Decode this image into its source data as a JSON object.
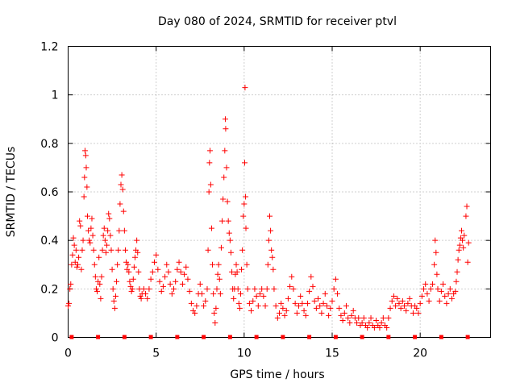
{
  "chart_data": {
    "type": "scatter",
    "title": "Day 080 of 2024, SRMTID for receiver ptvl",
    "xlabel": "GPS time / hours",
    "ylabel": "SRMTID / TECUs",
    "xlim": [
      0,
      24
    ],
    "ylim": [
      0,
      1.2
    ],
    "x_ticks": [
      0,
      5,
      10,
      15,
      20
    ],
    "x_tick_labels": [
      "0",
      "5",
      "10",
      "15",
      "20"
    ],
    "y_ticks": [
      0,
      0.2,
      0.4,
      0.6,
      0.8,
      1.0,
      1.2
    ],
    "y_tick_labels": [
      "0",
      "0.2",
      "0.4",
      "0.6",
      "0.8",
      "1",
      "1.2"
    ],
    "grid": true,
    "marker": "plus",
    "color": "#ff0000",
    "series": [
      {
        "name": "SRMTID",
        "points": [
          [
            0.0,
            0.13
          ],
          [
            0.05,
            0.14
          ],
          [
            0.1,
            0.2
          ],
          [
            0.15,
            0.22
          ],
          [
            0.2,
            0.3
          ],
          [
            0.25,
            0.34
          ],
          [
            0.3,
            0.41
          ],
          [
            0.35,
            0.38
          ],
          [
            0.4,
            0.31
          ],
          [
            0.45,
            0.36
          ],
          [
            0.5,
            0.29
          ],
          [
            0.55,
            0.3
          ],
          [
            0.6,
            0.33
          ],
          [
            0.65,
            0.48
          ],
          [
            0.7,
            0.46
          ],
          [
            0.75,
            0.28
          ],
          [
            0.8,
            0.36
          ],
          [
            0.85,
            0.4
          ],
          [
            0.9,
            0.58
          ],
          [
            0.93,
            0.66
          ],
          [
            0.96,
            0.77
          ],
          [
            1.0,
            0.75
          ],
          [
            1.03,
            0.7
          ],
          [
            1.07,
            0.62
          ],
          [
            1.1,
            0.5
          ],
          [
            1.15,
            0.44
          ],
          [
            1.2,
            0.4
          ],
          [
            1.25,
            0.39
          ],
          [
            1.3,
            0.45
          ],
          [
            1.35,
            0.49
          ],
          [
            1.4,
            0.42
          ],
          [
            1.45,
            0.36
          ],
          [
            1.5,
            0.3
          ],
          [
            1.55,
            0.25
          ],
          [
            1.6,
            0.2
          ],
          [
            1.65,
            0.19
          ],
          [
            1.7,
            0.23
          ],
          [
            1.75,
            0.33
          ],
          [
            1.8,
            0.22
          ],
          [
            1.85,
            0.16
          ],
          [
            1.9,
            0.25
          ],
          [
            1.95,
            0.36
          ],
          [
            2.0,
            0.42
          ],
          [
            2.05,
            0.45
          ],
          [
            2.1,
            0.4
          ],
          [
            2.15,
            0.35
          ],
          [
            2.2,
            0.38
          ],
          [
            2.25,
            0.44
          ],
          [
            2.3,
            0.51
          ],
          [
            2.35,
            0.49
          ],
          [
            2.4,
            0.42
          ],
          [
            2.45,
            0.36
          ],
          [
            2.5,
            0.28
          ],
          [
            2.55,
            0.2
          ],
          [
            2.6,
            0.15
          ],
          [
            2.65,
            0.12
          ],
          [
            2.7,
            0.17
          ],
          [
            2.75,
            0.23
          ],
          [
            2.8,
            0.3
          ],
          [
            2.85,
            0.36
          ],
          [
            2.9,
            0.44
          ],
          [
            2.95,
            0.55
          ],
          [
            3.0,
            0.63
          ],
          [
            3.05,
            0.67
          ],
          [
            3.1,
            0.61
          ],
          [
            3.15,
            0.52
          ],
          [
            3.2,
            0.44
          ],
          [
            3.25,
            0.36
          ],
          [
            3.3,
            0.31
          ],
          [
            3.35,
            0.28
          ],
          [
            3.4,
            0.3
          ],
          [
            3.45,
            0.27
          ],
          [
            3.5,
            0.23
          ],
          [
            3.55,
            0.21
          ],
          [
            3.6,
            0.19
          ],
          [
            3.65,
            0.2
          ],
          [
            3.7,
            0.24
          ],
          [
            3.75,
            0.29
          ],
          [
            3.8,
            0.33
          ],
          [
            3.85,
            0.36
          ],
          [
            3.9,
            0.4
          ],
          [
            3.95,
            0.35
          ],
          [
            4.0,
            0.27
          ],
          [
            4.05,
            0.2
          ],
          [
            4.1,
            0.17
          ],
          [
            4.15,
            0.16
          ],
          [
            4.2,
            0.18
          ],
          [
            4.3,
            0.2
          ],
          [
            4.4,
            0.18
          ],
          [
            4.5,
            0.16
          ],
          [
            4.6,
            0.2
          ],
          [
            4.7,
            0.24
          ],
          [
            4.8,
            0.27
          ],
          [
            4.9,
            0.31
          ],
          [
            5.0,
            0.34
          ],
          [
            5.1,
            0.28
          ],
          [
            5.2,
            0.23
          ],
          [
            5.3,
            0.19
          ],
          [
            5.4,
            0.21
          ],
          [
            5.5,
            0.25
          ],
          [
            5.6,
            0.3
          ],
          [
            5.7,
            0.27
          ],
          [
            5.8,
            0.22
          ],
          [
            5.9,
            0.18
          ],
          [
            6.0,
            0.2
          ],
          [
            6.1,
            0.23
          ],
          [
            6.2,
            0.28
          ],
          [
            6.3,
            0.31
          ],
          [
            6.4,
            0.27
          ],
          [
            6.5,
            0.22
          ],
          [
            6.6,
            0.26
          ],
          [
            6.7,
            0.29
          ],
          [
            6.8,
            0.24
          ],
          [
            6.9,
            0.19
          ],
          [
            7.0,
            0.14
          ],
          [
            7.1,
            0.11
          ],
          [
            7.2,
            0.1
          ],
          [
            7.3,
            0.13
          ],
          [
            7.4,
            0.18
          ],
          [
            7.5,
            0.22
          ],
          [
            7.6,
            0.18
          ],
          [
            7.7,
            0.13
          ],
          [
            7.8,
            0.15
          ],
          [
            7.9,
            0.2
          ],
          [
            7.95,
            0.36
          ],
          [
            8.0,
            0.6
          ],
          [
            8.03,
            0.72
          ],
          [
            8.06,
            0.77
          ],
          [
            8.1,
            0.63
          ],
          [
            8.15,
            0.45
          ],
          [
            8.2,
            0.3
          ],
          [
            8.25,
            0.18
          ],
          [
            8.3,
            0.1
          ],
          [
            8.35,
            0.06
          ],
          [
            8.4,
            0.12
          ],
          [
            8.45,
            0.2
          ],
          [
            8.5,
            0.26
          ],
          [
            8.55,
            0.3
          ],
          [
            8.6,
            0.24
          ],
          [
            8.65,
            0.18
          ],
          [
            8.7,
            0.37
          ],
          [
            8.75,
            0.48
          ],
          [
            8.8,
            0.57
          ],
          [
            8.85,
            0.66
          ],
          [
            8.9,
            0.77
          ],
          [
            8.93,
            0.9
          ],
          [
            8.95,
            0.86
          ],
          [
            9.0,
            0.7
          ],
          [
            9.05,
            0.56
          ],
          [
            9.1,
            0.48
          ],
          [
            9.15,
            0.43
          ],
          [
            9.2,
            0.4
          ],
          [
            9.25,
            0.35
          ],
          [
            9.3,
            0.27
          ],
          [
            9.35,
            0.2
          ],
          [
            9.4,
            0.16
          ],
          [
            9.45,
            0.2
          ],
          [
            9.5,
            0.26
          ],
          [
            9.55,
            0.3
          ],
          [
            9.6,
            0.27
          ],
          [
            9.65,
            0.2
          ],
          [
            9.7,
            0.14
          ],
          [
            9.75,
            0.12
          ],
          [
            9.8,
            0.18
          ],
          [
            9.85,
            0.28
          ],
          [
            9.9,
            0.36
          ],
          [
            9.95,
            0.5
          ],
          [
            10.0,
            0.55
          ],
          [
            10.03,
            0.72
          ],
          [
            10.05,
            1.03
          ],
          [
            10.08,
            0.58
          ],
          [
            10.1,
            0.45
          ],
          [
            10.15,
            0.3
          ],
          [
            10.2,
            0.2
          ],
          [
            10.3,
            0.14
          ],
          [
            10.4,
            0.11
          ],
          [
            10.5,
            0.15
          ],
          [
            10.6,
            0.2
          ],
          [
            10.7,
            0.17
          ],
          [
            10.8,
            0.13
          ],
          [
            10.9,
            0.18
          ],
          [
            11.0,
            0.2
          ],
          [
            11.1,
            0.17
          ],
          [
            11.2,
            0.13
          ],
          [
            11.3,
            0.2
          ],
          [
            11.35,
            0.3
          ],
          [
            11.4,
            0.4
          ],
          [
            11.45,
            0.5
          ],
          [
            11.5,
            0.44
          ],
          [
            11.55,
            0.36
          ],
          [
            11.6,
            0.33
          ],
          [
            11.65,
            0.28
          ],
          [
            11.7,
            0.2
          ],
          [
            11.8,
            0.13
          ],
          [
            11.9,
            0.08
          ],
          [
            12.0,
            0.1
          ],
          [
            12.1,
            0.14
          ],
          [
            12.2,
            0.12
          ],
          [
            12.3,
            0.09
          ],
          [
            12.4,
            0.11
          ],
          [
            12.5,
            0.16
          ],
          [
            12.6,
            0.21
          ],
          [
            12.7,
            0.25
          ],
          [
            12.8,
            0.2
          ],
          [
            12.9,
            0.14
          ],
          [
            13.0,
            0.1
          ],
          [
            13.1,
            0.13
          ],
          [
            13.2,
            0.17
          ],
          [
            13.3,
            0.14
          ],
          [
            13.4,
            0.11
          ],
          [
            13.5,
            0.09
          ],
          [
            13.6,
            0.14
          ],
          [
            13.7,
            0.19
          ],
          [
            13.8,
            0.25
          ],
          [
            13.9,
            0.21
          ],
          [
            14.0,
            0.15
          ],
          [
            14.1,
            0.12
          ],
          [
            14.2,
            0.16
          ],
          [
            14.3,
            0.13
          ],
          [
            14.4,
            0.1
          ],
          [
            14.5,
            0.14
          ],
          [
            14.6,
            0.18
          ],
          [
            14.7,
            0.13
          ],
          [
            14.8,
            0.09
          ],
          [
            14.9,
            0.12
          ],
          [
            15.0,
            0.15
          ],
          [
            15.1,
            0.2
          ],
          [
            15.2,
            0.24
          ],
          [
            15.3,
            0.18
          ],
          [
            15.4,
            0.12
          ],
          [
            15.5,
            0.09
          ],
          [
            15.6,
            0.07
          ],
          [
            15.7,
            0.1
          ],
          [
            15.8,
            0.13
          ],
          [
            15.9,
            0.08
          ],
          [
            16.0,
            0.06
          ],
          [
            16.1,
            0.09
          ],
          [
            16.2,
            0.11
          ],
          [
            16.3,
            0.08
          ],
          [
            16.4,
            0.06
          ],
          [
            16.5,
            0.08
          ],
          [
            16.6,
            0.05
          ],
          [
            16.7,
            0.06
          ],
          [
            16.8,
            0.08
          ],
          [
            16.9,
            0.05
          ],
          [
            17.0,
            0.04
          ],
          [
            17.1,
            0.06
          ],
          [
            17.2,
            0.08
          ],
          [
            17.3,
            0.05
          ],
          [
            17.4,
            0.04
          ],
          [
            17.5,
            0.07
          ],
          [
            17.6,
            0.05
          ],
          [
            17.7,
            0.04
          ],
          [
            17.8,
            0.06
          ],
          [
            17.9,
            0.08
          ],
          [
            18.0,
            0.05
          ],
          [
            18.1,
            0.04
          ],
          [
            18.2,
            0.08
          ],
          [
            18.3,
            0.12
          ],
          [
            18.4,
            0.15
          ],
          [
            18.5,
            0.17
          ],
          [
            18.6,
            0.13
          ],
          [
            18.7,
            0.16
          ],
          [
            18.8,
            0.14
          ],
          [
            18.9,
            0.12
          ],
          [
            19.0,
            0.15
          ],
          [
            19.1,
            0.13
          ],
          [
            19.2,
            0.11
          ],
          [
            19.3,
            0.14
          ],
          [
            19.4,
            0.16
          ],
          [
            19.5,
            0.13
          ],
          [
            19.6,
            0.1
          ],
          [
            19.7,
            0.13
          ],
          [
            19.8,
            0.12
          ],
          [
            19.9,
            0.1
          ],
          [
            20.0,
            0.14
          ],
          [
            20.1,
            0.17
          ],
          [
            20.2,
            0.2
          ],
          [
            20.3,
            0.22
          ],
          [
            20.4,
            0.18
          ],
          [
            20.5,
            0.15
          ],
          [
            20.6,
            0.2
          ],
          [
            20.7,
            0.22
          ],
          [
            20.8,
            0.3
          ],
          [
            20.85,
            0.4
          ],
          [
            20.9,
            0.35
          ],
          [
            20.95,
            0.26
          ],
          [
            21.0,
            0.2
          ],
          [
            21.1,
            0.15
          ],
          [
            21.2,
            0.19
          ],
          [
            21.3,
            0.22
          ],
          [
            21.4,
            0.17
          ],
          [
            21.5,
            0.14
          ],
          [
            21.6,
            0.18
          ],
          [
            21.7,
            0.2
          ],
          [
            21.8,
            0.16
          ],
          [
            21.9,
            0.18
          ],
          [
            22.0,
            0.19
          ],
          [
            22.05,
            0.23
          ],
          [
            22.1,
            0.27
          ],
          [
            22.15,
            0.32
          ],
          [
            22.2,
            0.36
          ],
          [
            22.25,
            0.38
          ],
          [
            22.3,
            0.41
          ],
          [
            22.35,
            0.44
          ],
          [
            22.4,
            0.4
          ],
          [
            22.45,
            0.37
          ],
          [
            22.5,
            0.42
          ],
          [
            22.6,
            0.5
          ],
          [
            22.65,
            0.54
          ],
          [
            22.7,
            0.31
          ],
          [
            22.75,
            0.39
          ]
        ]
      }
    ],
    "gap_markers_x": [
      0.2,
      1.7,
      3.2,
      4.7,
      6.2,
      7.7,
      9.2,
      10.7,
      12.2,
      13.7,
      15.2,
      16.7,
      18.2,
      19.7,
      21.2,
      22.7
    ]
  }
}
